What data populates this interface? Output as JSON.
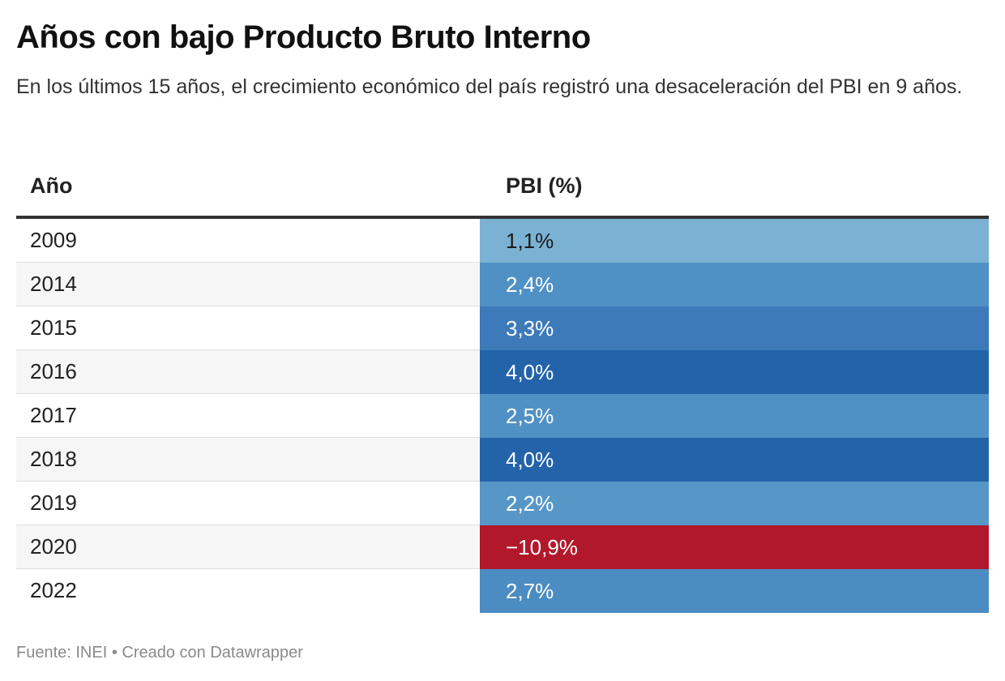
{
  "title": "Años con bajo Producto Bruto Interno",
  "subtitle": "En los últimos 15 años, el crecimiento económico del país registró una desaceleración del PBI en 9 años.",
  "footer": "Fuente: INEI • Creado con Datawrapper",
  "chart_data": {
    "type": "table",
    "columns": [
      "Año",
      "PBI (%)"
    ],
    "rows": [
      {
        "year": "2009",
        "pbi": 1.1,
        "label": "1,1%",
        "color": "#7bb2d4",
        "text_color": "#1a1a1a"
      },
      {
        "year": "2014",
        "pbi": 2.4,
        "label": "2,4%",
        "color": "#5091c5",
        "text_color": "#ffffff"
      },
      {
        "year": "2015",
        "pbi": 3.3,
        "label": "3,3%",
        "color": "#3c7ab9",
        "text_color": "#ffffff"
      },
      {
        "year": "2016",
        "pbi": 4.0,
        "label": "4,0%",
        "color": "#2363aa",
        "text_color": "#ffffff"
      },
      {
        "year": "2017",
        "pbi": 2.5,
        "label": "2,5%",
        "color": "#5091c5",
        "text_color": "#ffffff"
      },
      {
        "year": "2018",
        "pbi": 4.0,
        "label": "4,0%",
        "color": "#2363aa",
        "text_color": "#ffffff"
      },
      {
        "year": "2019",
        "pbi": 2.2,
        "label": "2,2%",
        "color": "#5797c8",
        "text_color": "#ffffff"
      },
      {
        "year": "2020",
        "pbi": -10.9,
        "label": "−10,9%",
        "color": "#b2182b",
        "text_color": "#ffffff"
      },
      {
        "year": "2022",
        "pbi": 2.7,
        "label": "2,7%",
        "color": "#4b8cc2",
        "text_color": "#ffffff"
      }
    ]
  }
}
